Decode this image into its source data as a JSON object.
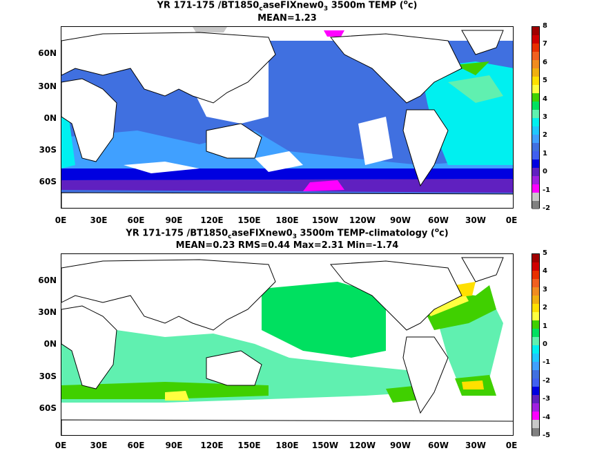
{
  "panel1": {
    "title_pre": "YR 171-175 /BT1850",
    "title_sub1": "c",
    "title_mid": "aseFIXnew0",
    "title_sub2": "3",
    "title_post": " 3500m TEMP (",
    "title_sup": "o",
    "title_end": "c)",
    "stats": "MEAN=1.23",
    "colorbar_labels": [
      "8",
      "7",
      "6",
      "5",
      "4",
      "3",
      "2",
      "1",
      "0",
      "-1",
      "-2"
    ],
    "colorbar_colors": [
      "#a00000",
      "#d00000",
      "#e83000",
      "#f06020",
      "#f08c20",
      "#f0b010",
      "#ffe000",
      "#ffff40",
      "#40d000",
      "#00e060",
      "#60f0b0",
      "#00f0f0",
      "#20c8ff",
      "#40a0ff",
      "#4070e0",
      "#4060f0",
      "#0000e0",
      "#6020c0",
      "#a020e0",
      "#ff00ff",
      "#c8c8c8",
      "#808080"
    ]
  },
  "panel2": {
    "title_pre": "YR 171-175 /BT1850",
    "title_sub1": "c",
    "title_mid": "aseFIXnew0",
    "title_sub2": "3",
    "title_post": " 3500m TEMP-climatology (",
    "title_sup": "o",
    "title_end": "c)",
    "stats": "MEAN=0.23   RMS=0.44   Max=2.31   Min=-1.74",
    "colorbar_labels": [
      "5",
      "4",
      "3",
      "2",
      "1",
      "0",
      "-1",
      "-2",
      "-3",
      "-4",
      "-5"
    ],
    "colorbar_colors": [
      "#a00000",
      "#d00000",
      "#e83000",
      "#f06020",
      "#f08c20",
      "#f0b010",
      "#ffe000",
      "#ffff40",
      "#40d000",
      "#00e060",
      "#60f0b0",
      "#00f0f0",
      "#20c8ff",
      "#40a0ff",
      "#4070e0",
      "#4060f0",
      "#0000e0",
      "#6020c0",
      "#a020e0",
      "#ff00ff",
      "#c8c8c8",
      "#808080"
    ]
  },
  "axes": {
    "lat_labels": [
      "60N",
      "30N",
      "0N",
      "30S",
      "60S"
    ],
    "lon_labels": [
      "0E",
      "30E",
      "60E",
      "90E",
      "120E",
      "150E",
      "180E",
      "150W",
      "120W",
      "90W",
      "60W",
      "30W",
      "0E"
    ]
  }
}
